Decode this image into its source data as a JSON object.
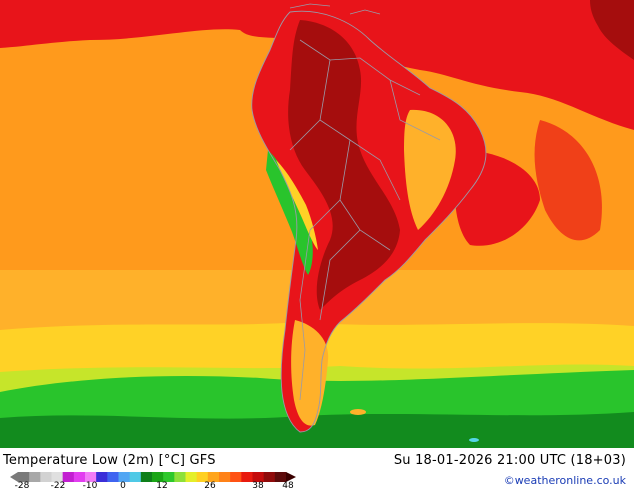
{
  "map": {
    "title": "Temperature Low (2m) [°C] GFS",
    "datetime": "Su 18-01-2026 21:00 UTC (18+03)",
    "credit": "©weatheronline.co.uk"
  },
  "legend": {
    "ticks": [
      "-28",
      "-22",
      "-10",
      "0",
      "12",
      "26",
      "38",
      "48"
    ],
    "colors": [
      "#7a7a7a",
      "#a8a8a8",
      "#d2d2d2",
      "#e0e0e0",
      "#c21fd1",
      "#e23df0",
      "#f27cf7",
      "#3b2ed8",
      "#3f64f0",
      "#52a6f3",
      "#4fc9e6",
      "#0e7f1a",
      "#1aa516",
      "#2ec82b",
      "#8ee03a",
      "#e4ef2a",
      "#ffd022",
      "#ffa51c",
      "#ff8218",
      "#ff5214",
      "#e81a0e",
      "#c40b0b",
      "#8f0a0a",
      "#5c0a0a"
    ],
    "arrow_color": "#3a0000"
  },
  "colors": {
    "ocean_orange": "#ff9a1c",
    "ocean_light": "#ffb12a",
    "ocean_yellow": "#ffd226",
    "yellow_green": "#c6e52a",
    "green": "#29c42c",
    "dark_green": "#128b1e",
    "land_red": "#e8141a",
    "land_dark": "#a50d0d",
    "land_mid": "#f04018",
    "border": "#9a9aa8"
  }
}
